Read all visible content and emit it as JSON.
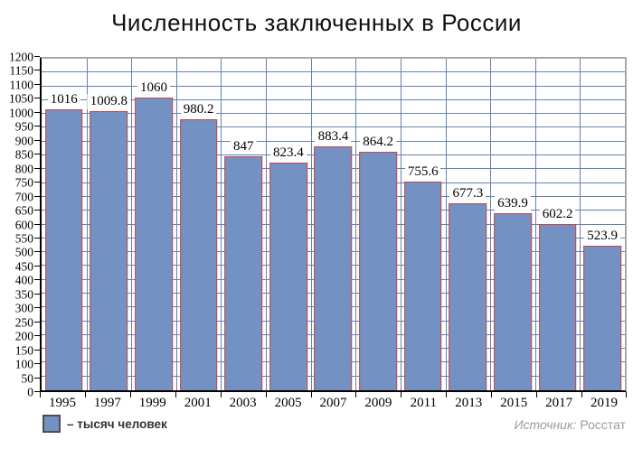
{
  "title": "Численность заключенных в России",
  "legend": {
    "label": "– тысяч человек",
    "swatch_color": "#7391c2"
  },
  "source": {
    "prefix": "Источник:",
    "name": " Росстат"
  },
  "chart_data": {
    "type": "bar",
    "title": "Численность заключенных в России",
    "categories": [
      "1995",
      "1997",
      "1999",
      "2001",
      "2003",
      "2005",
      "2007",
      "2009",
      "2011",
      "2013",
      "2015",
      "2017",
      "2019"
    ],
    "values": [
      1016,
      1009.8,
      1060,
      980.2,
      847,
      823.4,
      883.4,
      864.2,
      755.6,
      677.3,
      639.9,
      602.2,
      523.9
    ],
    "value_labels": [
      "1016",
      "1009.8",
      "1060",
      "980.2",
      "847",
      "823.4",
      "883.4",
      "864.2",
      "755.6",
      "677.3",
      "639.9",
      "602.2",
      "523.9"
    ],
    "xlabel": "",
    "ylabel": "тысяч человек",
    "ylim": [
      0,
      1200
    ],
    "ytick_step": 50,
    "grid": true,
    "legend_position": "bottom-left",
    "legend_entries": [
      "– тысяч человек"
    ],
    "colors": {
      "bar_fill": "#7391c2",
      "bar_border": "#c74846",
      "gridline": "#6482af",
      "axis": "#000000",
      "plot_border": "#a8a8a8",
      "value_text": "#000000",
      "source_text": "#9b9b9b"
    }
  }
}
